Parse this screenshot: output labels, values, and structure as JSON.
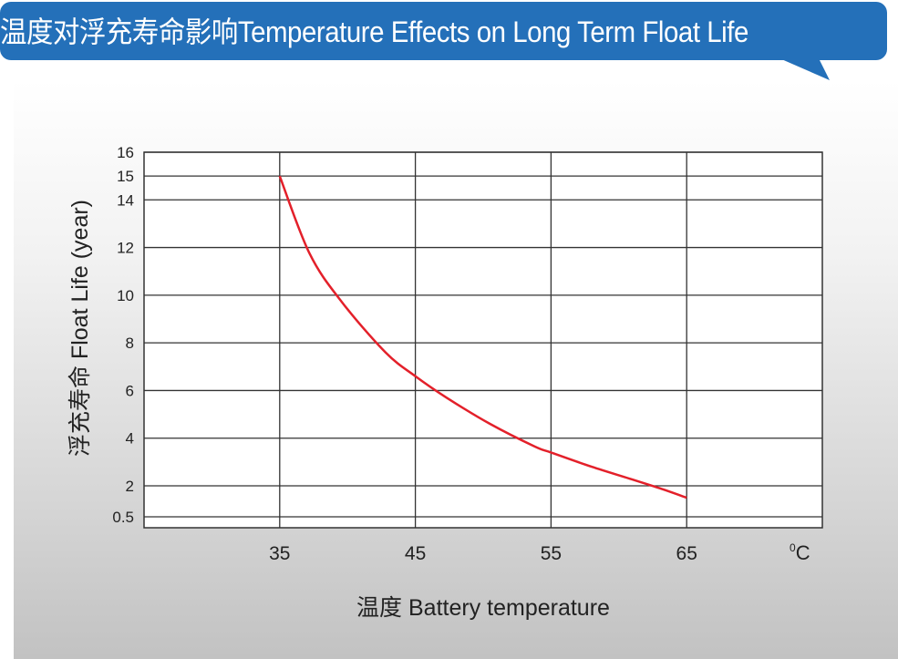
{
  "chart_data": {
    "type": "line",
    "title": "温度对浮充寿命影响Temperature Effects on Long Term Float Life",
    "xlabel": "温度  Battery temperature",
    "ylabel": "浮充寿命  Float Life (year)",
    "x_unit": "0C",
    "xlim": [
      25,
      75
    ],
    "ylim": [
      0.2,
      16
    ],
    "x_ticks": [
      35,
      45,
      55,
      65
    ],
    "x_tick_labels": [
      "35",
      "45",
      "55",
      "65"
    ],
    "y_ticks": [
      0.5,
      2,
      4,
      6,
      8,
      10,
      12,
      14,
      15,
      16
    ],
    "y_tick_labels": [
      "0.5",
      "2",
      "4",
      "6",
      "8",
      "10",
      "12",
      "14",
      "15",
      "16"
    ],
    "grid": true,
    "series": [
      {
        "color": "#e3202a",
        "x": [
          35,
          37.2,
          39.6,
          42.8,
          45,
          47.3,
          50.5,
          53.8,
          55,
          58,
          60.8,
          63,
          65
        ],
        "y": [
          15,
          11.75,
          9.7,
          7.6,
          6.6,
          5.7,
          4.6,
          3.65,
          3.4,
          2.8,
          2.3,
          1.9,
          1.5
        ]
      }
    ]
  },
  "colors": {
    "banner": "#2470b9",
    "grid": "#333333"
  }
}
